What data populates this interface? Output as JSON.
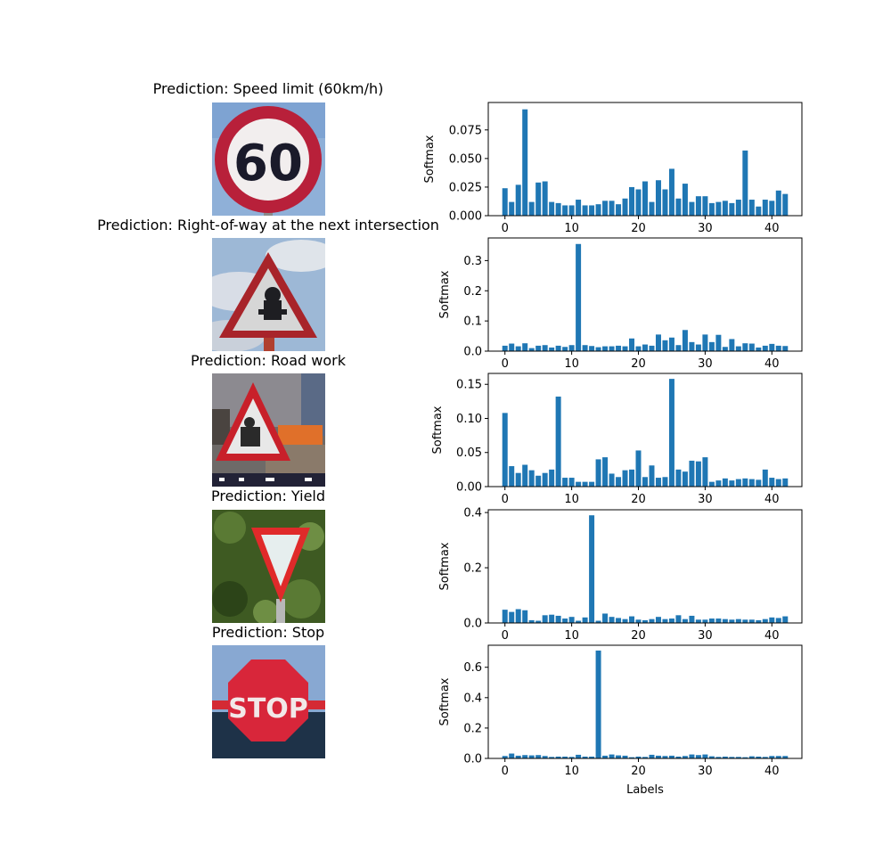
{
  "colors": {
    "bar": "#1f77b4",
    "axis": "#000000",
    "background": "#ffffff"
  },
  "chart_data": [
    {
      "type": "bar",
      "image_title": "Prediction: Speed limit (60km/h)",
      "image_icon": "speed-limit-60-sign",
      "sign_text": "60",
      "xlabel": "",
      "ylabel": "Softmax",
      "xlim": [
        -2.5,
        44.5
      ],
      "ylim": [
        0,
        0.099
      ],
      "xticks": [
        0,
        10,
        20,
        30,
        40
      ],
      "xtick_labels": [
        "0",
        "10",
        "20",
        "30",
        "40"
      ],
      "yticks": [
        0,
        0.025,
        0.05,
        0.075
      ],
      "ytick_labels": [
        "0.000",
        "0.025",
        "0.050",
        "0.075"
      ],
      "categories": [
        0,
        1,
        2,
        3,
        4,
        5,
        6,
        7,
        8,
        9,
        10,
        11,
        12,
        13,
        14,
        15,
        16,
        17,
        18,
        19,
        20,
        21,
        22,
        23,
        24,
        25,
        26,
        27,
        28,
        29,
        30,
        31,
        32,
        33,
        34,
        35,
        36,
        37,
        38,
        39,
        40,
        41,
        42
      ],
      "values": [
        0.024,
        0.012,
        0.027,
        0.093,
        0.012,
        0.029,
        0.03,
        0.012,
        0.011,
        0.009,
        0.009,
        0.014,
        0.009,
        0.009,
        0.01,
        0.013,
        0.013,
        0.01,
        0.015,
        0.025,
        0.023,
        0.03,
        0.012,
        0.031,
        0.023,
        0.041,
        0.015,
        0.028,
        0.012,
        0.017,
        0.017,
        0.011,
        0.012,
        0.013,
        0.011,
        0.014,
        0.057,
        0.014,
        0.008,
        0.014,
        0.013,
        0.022,
        0.019
      ]
    },
    {
      "type": "bar",
      "image_title": "Prediction: Right-of-way at the next intersection",
      "image_icon": "right-of-way-sign",
      "xlabel": "",
      "ylabel": "Softmax",
      "xlim": [
        -2.5,
        44.5
      ],
      "ylim": [
        0,
        0.375
      ],
      "xticks": [
        0,
        10,
        20,
        30,
        40
      ],
      "xtick_labels": [
        "0",
        "10",
        "20",
        "30",
        "40"
      ],
      "yticks": [
        0,
        0.1,
        0.2,
        0.3
      ],
      "ytick_labels": [
        "0.0",
        "0.1",
        "0.2",
        "0.3"
      ],
      "categories": [
        0,
        1,
        2,
        3,
        4,
        5,
        6,
        7,
        8,
        9,
        10,
        11,
        12,
        13,
        14,
        15,
        16,
        17,
        18,
        19,
        20,
        21,
        22,
        23,
        24,
        25,
        26,
        27,
        28,
        29,
        30,
        31,
        32,
        33,
        34,
        35,
        36,
        37,
        38,
        39,
        40,
        41,
        42
      ],
      "values": [
        0.018,
        0.025,
        0.016,
        0.026,
        0.01,
        0.018,
        0.02,
        0.012,
        0.018,
        0.014,
        0.02,
        0.355,
        0.02,
        0.017,
        0.013,
        0.016,
        0.016,
        0.018,
        0.016,
        0.042,
        0.016,
        0.022,
        0.018,
        0.055,
        0.036,
        0.045,
        0.02,
        0.07,
        0.03,
        0.022,
        0.055,
        0.03,
        0.054,
        0.014,
        0.04,
        0.016,
        0.026,
        0.025,
        0.012,
        0.018,
        0.024,
        0.018,
        0.017
      ]
    },
    {
      "type": "bar",
      "image_title": "Prediction: Road work",
      "image_icon": "road-work-sign",
      "xlabel": "",
      "ylabel": "Softmax",
      "xlim": [
        -2.5,
        44.5
      ],
      "ylim": [
        0,
        0.166
      ],
      "xticks": [
        0,
        10,
        20,
        30,
        40
      ],
      "xtick_labels": [
        "0",
        "10",
        "20",
        "30",
        "40"
      ],
      "yticks": [
        0,
        0.05,
        0.1,
        0.15
      ],
      "ytick_labels": [
        "0.00",
        "0.05",
        "0.10",
        "0.15"
      ],
      "categories": [
        0,
        1,
        2,
        3,
        4,
        5,
        6,
        7,
        8,
        9,
        10,
        11,
        12,
        13,
        14,
        15,
        16,
        17,
        18,
        19,
        20,
        21,
        22,
        23,
        24,
        25,
        26,
        27,
        28,
        29,
        30,
        31,
        32,
        33,
        34,
        35,
        36,
        37,
        38,
        39,
        40,
        41,
        42
      ],
      "values": [
        0.108,
        0.03,
        0.02,
        0.032,
        0.024,
        0.016,
        0.02,
        0.025,
        0.132,
        0.013,
        0.013,
        0.007,
        0.007,
        0.007,
        0.04,
        0.043,
        0.019,
        0.014,
        0.024,
        0.025,
        0.053,
        0.014,
        0.031,
        0.013,
        0.014,
        0.158,
        0.025,
        0.022,
        0.038,
        0.037,
        0.043,
        0.007,
        0.009,
        0.012,
        0.009,
        0.011,
        0.012,
        0.011,
        0.01,
        0.025,
        0.013,
        0.011,
        0.012
      ]
    },
    {
      "type": "bar",
      "image_title": "Prediction: Yield",
      "image_icon": "yield-sign",
      "xlabel": "",
      "ylabel": "Softmax",
      "xlim": [
        -2.5,
        44.5
      ],
      "ylim": [
        0,
        0.41
      ],
      "xticks": [
        0,
        10,
        20,
        30,
        40
      ],
      "xtick_labels": [
        "0",
        "10",
        "20",
        "30",
        "40"
      ],
      "yticks": [
        0,
        0.2,
        0.4
      ],
      "ytick_labels": [
        "0.0",
        "0.2",
        "0.4"
      ],
      "categories": [
        0,
        1,
        2,
        3,
        4,
        5,
        6,
        7,
        8,
        9,
        10,
        11,
        12,
        13,
        14,
        15,
        16,
        17,
        18,
        19,
        20,
        21,
        22,
        23,
        24,
        25,
        26,
        27,
        28,
        29,
        30,
        31,
        32,
        33,
        34,
        35,
        36,
        37,
        38,
        39,
        40,
        41,
        42
      ],
      "values": [
        0.048,
        0.04,
        0.05,
        0.046,
        0.01,
        0.008,
        0.028,
        0.03,
        0.026,
        0.016,
        0.022,
        0.008,
        0.02,
        0.39,
        0.008,
        0.034,
        0.022,
        0.018,
        0.014,
        0.024,
        0.012,
        0.01,
        0.014,
        0.022,
        0.014,
        0.016,
        0.028,
        0.014,
        0.026,
        0.012,
        0.012,
        0.016,
        0.016,
        0.014,
        0.012,
        0.014,
        0.012,
        0.012,
        0.01,
        0.014,
        0.02,
        0.018,
        0.024
      ]
    },
    {
      "type": "bar",
      "image_title": "Prediction: Stop",
      "image_icon": "stop-sign",
      "sign_text": "STOP",
      "xlabel": "Labels",
      "ylabel": "Softmax",
      "xlim": [
        -2.5,
        44.5
      ],
      "ylim": [
        0,
        0.745
      ],
      "xticks": [
        0,
        10,
        20,
        30,
        40
      ],
      "xtick_labels": [
        "0",
        "10",
        "20",
        "30",
        "40"
      ],
      "yticks": [
        0,
        0.2,
        0.4,
        0.6
      ],
      "ytick_labels": [
        "0.0",
        "0.2",
        "0.4",
        "0.6"
      ],
      "categories": [
        0,
        1,
        2,
        3,
        4,
        5,
        6,
        7,
        8,
        9,
        10,
        11,
        12,
        13,
        14,
        15,
        16,
        17,
        18,
        19,
        20,
        21,
        22,
        23,
        24,
        25,
        26,
        27,
        28,
        29,
        30,
        31,
        32,
        33,
        34,
        35,
        36,
        37,
        38,
        39,
        40,
        41,
        42
      ],
      "values": [
        0.016,
        0.032,
        0.018,
        0.022,
        0.02,
        0.022,
        0.016,
        0.01,
        0.012,
        0.012,
        0.01,
        0.024,
        0.012,
        0.012,
        0.71,
        0.018,
        0.026,
        0.02,
        0.018,
        0.008,
        0.012,
        0.01,
        0.024,
        0.018,
        0.016,
        0.018,
        0.012,
        0.016,
        0.026,
        0.022,
        0.026,
        0.014,
        0.01,
        0.012,
        0.01,
        0.01,
        0.008,
        0.014,
        0.012,
        0.01,
        0.016,
        0.016,
        0.016
      ]
    }
  ]
}
